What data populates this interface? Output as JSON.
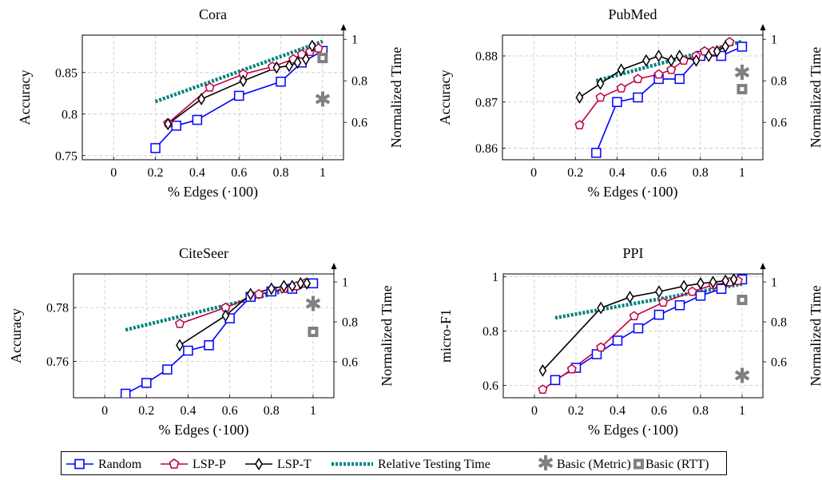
{
  "colors": {
    "random": "#0000ff",
    "lspp": "#bf0040",
    "lspt": "#000000",
    "time": "#008080",
    "basic": "#808080"
  },
  "legend": {
    "random": "Random",
    "lspp": "LSP-P",
    "lspt": "LSP-T",
    "time": "Relative Testing Time",
    "metric": "Basic (Metric)",
    "rtt": "Basic (RTT)"
  },
  "chart_data": [
    {
      "type": "line",
      "title": "Cora",
      "xlabel": "% Edges (·100)",
      "ylabel": "Accuracy",
      "y2label": "Normalized Time",
      "xlim": [
        -0.15,
        1.1
      ],
      "ylim": [
        0.745,
        0.895
      ],
      "y2lim": [
        0.42,
        1.02
      ],
      "xticks": [
        "0",
        "0.2",
        "0.4",
        "0.6",
        "0.8",
        "1"
      ],
      "yticks": [
        "0.75",
        "0.8",
        "0.85"
      ],
      "y2ticks": [
        "0.6",
        "0.8",
        "1"
      ],
      "series": [
        {
          "key": "random",
          "x": [
            0.2,
            0.3,
            0.4,
            0.6,
            0.8,
            0.9,
            1.0
          ],
          "y": [
            0.759,
            0.786,
            0.793,
            0.822,
            0.839,
            0.862,
            0.876
          ]
        },
        {
          "key": "lspp",
          "x": [
            0.26,
            0.46,
            0.62,
            0.76,
            0.86,
            0.9,
            0.94,
            0.98
          ],
          "y": [
            0.789,
            0.832,
            0.848,
            0.857,
            0.866,
            0.872,
            0.875,
            0.879
          ]
        },
        {
          "key": "lspt",
          "x": [
            0.26,
            0.42,
            0.62,
            0.78,
            0.84,
            0.88,
            0.92,
            0.95
          ],
          "y": [
            0.788,
            0.818,
            0.84,
            0.856,
            0.858,
            0.862,
            0.866,
            0.882
          ]
        }
      ],
      "time": {
        "x": [
          0.2,
          1.0
        ],
        "y": [
          0.7,
          0.99
        ]
      },
      "basic_metric": {
        "x": 1.0,
        "y": 0.71
      },
      "basic_rtt": {
        "x": 1.0,
        "y": 0.91
      }
    },
    {
      "type": "line",
      "title": "PubMed",
      "xlabel": "% Edges (·100)",
      "ylabel": "Accuracy",
      "y2label": "Normalized Time",
      "xlim": [
        -0.15,
        1.1
      ],
      "ylim": [
        0.8575,
        0.8845
      ],
      "y2lim": [
        0.42,
        1.02
      ],
      "xticks": [
        "0",
        "0.2",
        "0.4",
        "0.6",
        "0.8",
        "1"
      ],
      "yticks": [
        "0.86",
        "0.87",
        "0.88"
      ],
      "y2ticks": [
        "0.6",
        "0.8",
        "1"
      ],
      "series": [
        {
          "key": "random",
          "x": [
            0.3,
            0.4,
            0.5,
            0.6,
            0.7,
            0.8,
            0.9,
            1.0
          ],
          "y": [
            0.859,
            0.87,
            0.871,
            0.875,
            0.875,
            0.88,
            0.88,
            0.882
          ]
        },
        {
          "key": "lspp",
          "x": [
            0.22,
            0.32,
            0.42,
            0.5,
            0.6,
            0.66,
            0.72,
            0.78,
            0.82,
            0.86,
            0.94
          ],
          "y": [
            0.865,
            0.871,
            0.873,
            0.875,
            0.876,
            0.877,
            0.879,
            0.88,
            0.881,
            0.881,
            0.883
          ]
        },
        {
          "key": "lspt",
          "x": [
            0.22,
            0.32,
            0.42,
            0.54,
            0.6,
            0.66,
            0.7,
            0.78,
            0.84,
            0.88,
            0.92
          ],
          "y": [
            0.871,
            0.874,
            0.877,
            0.879,
            0.88,
            0.879,
            0.88,
            0.879,
            0.88,
            0.881,
            0.882
          ]
        }
      ],
      "time": {
        "x": [
          0.3,
          1.0
        ],
        "y": [
          0.8,
          0.99
        ]
      },
      "basic_metric": {
        "x": 1.0,
        "y": 0.84
      },
      "basic_rtt": {
        "x": 1.0,
        "y": 0.76
      }
    },
    {
      "type": "line",
      "title": "CiteSeer",
      "xlabel": "% Edges (·100)",
      "ylabel": "Accuracy",
      "y2label": "Normalized Time",
      "xlim": [
        -0.15,
        1.1
      ],
      "ylim": [
        0.7465,
        0.7925
      ],
      "y2lim": [
        0.42,
        1.04
      ],
      "xticks": [
        "0",
        "0.2",
        "0.4",
        "0.6",
        "0.8",
        "1"
      ],
      "yticks": [
        "0.76",
        "0.78"
      ],
      "y2ticks": [
        "0.6",
        "0.8",
        "1"
      ],
      "series": [
        {
          "key": "random",
          "x": [
            0.1,
            0.2,
            0.3,
            0.4,
            0.5,
            0.6,
            0.7,
            0.8,
            0.9,
            1.0
          ],
          "y": [
            0.748,
            0.752,
            0.757,
            0.764,
            0.766,
            0.776,
            0.784,
            0.786,
            0.787,
            0.789
          ]
        },
        {
          "key": "lspp",
          "x": [
            0.36,
            0.58,
            0.74,
            0.86,
            0.92,
            0.96
          ],
          "y": [
            0.774,
            0.78,
            0.785,
            0.787,
            0.788,
            0.789
          ]
        },
        {
          "key": "lspt",
          "x": [
            0.36,
            0.58,
            0.7,
            0.8,
            0.86,
            0.9,
            0.94,
            0.97
          ],
          "y": [
            0.766,
            0.777,
            0.785,
            0.787,
            0.788,
            0.788,
            0.789,
            0.789
          ]
        }
      ],
      "time": {
        "x": [
          0.1,
          1.0
        ],
        "y": [
          0.76,
          0.99
        ]
      },
      "basic_metric": {
        "x": 1.0,
        "y": 0.89
      },
      "basic_rtt": {
        "x": 1.0,
        "y": 0.75
      }
    },
    {
      "type": "line",
      "title": "PPI",
      "xlabel": "% Edges (·100)",
      "ylabel": "micro-F1",
      "y2label": "Normalized Time",
      "xlim": [
        -0.15,
        1.1
      ],
      "ylim": [
        0.555,
        1.01
      ],
      "y2lim": [
        0.42,
        1.04
      ],
      "xticks": [
        "0",
        "0.2",
        "0.4",
        "0.6",
        "0.8",
        "1"
      ],
      "yticks": [
        "0.6",
        "0.8",
        "1"
      ],
      "y2ticks": [
        "0.6",
        "0.8",
        "1"
      ],
      "series": [
        {
          "key": "random",
          "x": [
            0.1,
            0.2,
            0.3,
            0.4,
            0.5,
            0.6,
            0.7,
            0.8,
            0.9,
            1.0
          ],
          "y": [
            0.62,
            0.665,
            0.715,
            0.765,
            0.81,
            0.86,
            0.895,
            0.93,
            0.955,
            0.99
          ]
        },
        {
          "key": "lspp",
          "x": [
            0.04,
            0.18,
            0.32,
            0.48,
            0.62,
            0.76,
            0.86,
            0.94,
            0.98
          ],
          "y": [
            0.585,
            0.66,
            0.74,
            0.855,
            0.905,
            0.945,
            0.97,
            0.98,
            0.985
          ]
        },
        {
          "key": "lspt",
          "x": [
            0.04,
            0.32,
            0.46,
            0.6,
            0.72,
            0.8,
            0.86,
            0.92,
            0.96
          ],
          "y": [
            0.655,
            0.885,
            0.925,
            0.945,
            0.965,
            0.975,
            0.98,
            0.985,
            0.99
          ]
        }
      ],
      "time": {
        "x": [
          0.1,
          1.0
        ],
        "y": [
          0.82,
          0.99
        ]
      },
      "basic_metric": {
        "x": 1.0,
        "y": 0.53
      },
      "basic_rtt": {
        "x": 1.0,
        "y": 0.91
      }
    }
  ]
}
